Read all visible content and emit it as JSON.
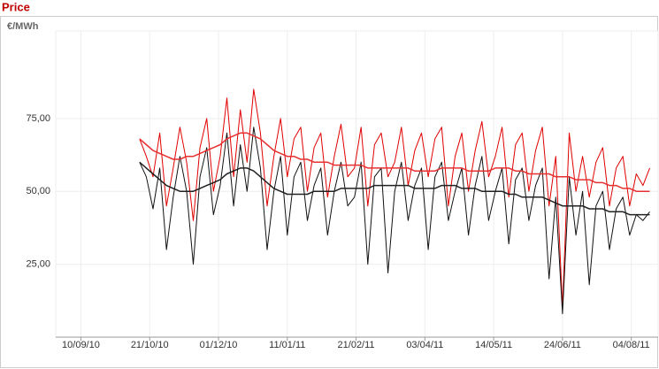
{
  "chart_data": {
    "type": "line",
    "title": "Price",
    "y_label": "€/MWh",
    "x": [
      "2010-10-15",
      "2010-10-19",
      "2010-10-23",
      "2010-10-27",
      "2010-10-31",
      "2010-11-04",
      "2010-11-08",
      "2010-11-12",
      "2010-11-16",
      "2010-11-20",
      "2010-11-24",
      "2010-11-28",
      "2010-12-02",
      "2010-12-06",
      "2010-12-10",
      "2010-12-14",
      "2010-12-18",
      "2010-12-22",
      "2010-12-26",
      "2010-12-30",
      "2011-01-03",
      "2011-01-07",
      "2011-01-11",
      "2011-01-15",
      "2011-01-19",
      "2011-01-23",
      "2011-01-27",
      "2011-01-31",
      "2011-02-04",
      "2011-02-08",
      "2011-02-12",
      "2011-02-16",
      "2011-02-20",
      "2011-02-24",
      "2011-02-28",
      "2011-03-04",
      "2011-03-08",
      "2011-03-12",
      "2011-03-16",
      "2011-03-20",
      "2011-03-24",
      "2011-03-28",
      "2011-04-01",
      "2011-04-05",
      "2011-04-09",
      "2011-04-13",
      "2011-04-17",
      "2011-04-21",
      "2011-04-25",
      "2011-04-29",
      "2011-05-03",
      "2011-05-07",
      "2011-05-11",
      "2011-05-15",
      "2011-05-19",
      "2011-05-23",
      "2011-05-27",
      "2011-05-31",
      "2011-06-04",
      "2011-06-08",
      "2011-06-12",
      "2011-06-16",
      "2011-06-20",
      "2011-06-24",
      "2011-06-28",
      "2011-07-02",
      "2011-07-06",
      "2011-07-10",
      "2011-07-14",
      "2011-07-18",
      "2011-07-22",
      "2011-07-26",
      "2011-07-30",
      "2011-08-03",
      "2011-08-07",
      "2011-08-11",
      "2011-08-15"
    ],
    "series": [
      {
        "color": "#e00000",
        "width": 1,
        "values": [
          68,
          62,
          55,
          70,
          45,
          58,
          72,
          60,
          40,
          65,
          75,
          50,
          62,
          82,
          55,
          78,
          60,
          85,
          70,
          45,
          62,
          75,
          55,
          68,
          72,
          50,
          65,
          70,
          48,
          62,
          73,
          55,
          58,
          72,
          45,
          66,
          70,
          55,
          60,
          72,
          52,
          64,
          70,
          55,
          68,
          72,
          45,
          62,
          70,
          50,
          64,
          74,
          55,
          62,
          72,
          48,
          66,
          70,
          50,
          64,
          72,
          45,
          62,
          10,
          70,
          50,
          62,
          48,
          60,
          65,
          45,
          58,
          62,
          45,
          56,
          52,
          58
        ]
      },
      {
        "color": "#111111",
        "width": 1,
        "values": [
          60,
          55,
          44,
          58,
          30,
          48,
          62,
          50,
          25,
          55,
          65,
          42,
          52,
          70,
          45,
          66,
          50,
          72,
          58,
          30,
          50,
          62,
          35,
          55,
          60,
          40,
          52,
          58,
          35,
          50,
          60,
          45,
          48,
          60,
          25,
          55,
          58,
          22,
          50,
          60,
          40,
          52,
          58,
          30,
          55,
          60,
          40,
          50,
          58,
          35,
          52,
          62,
          40,
          50,
          58,
          32,
          54,
          58,
          40,
          52,
          58,
          20,
          48,
          8,
          55,
          35,
          50,
          18,
          45,
          50,
          30,
          44,
          48,
          35,
          42,
          40,
          43
        ]
      },
      {
        "color": "#e83030",
        "width": 1.5,
        "values": [
          68,
          66,
          64,
          63,
          62,
          61,
          61,
          62,
          62,
          63,
          64,
          65,
          66,
          68,
          69,
          70,
          70,
          69,
          68,
          66,
          64,
          63,
          62,
          62,
          61,
          61,
          60,
          60,
          60,
          59,
          59,
          59,
          59,
          59,
          58,
          58,
          58,
          58,
          58,
          58,
          58,
          57,
          57,
          57,
          57,
          58,
          58,
          58,
          58,
          57,
          57,
          57,
          57,
          58,
          58,
          58,
          57,
          57,
          56,
          56,
          56,
          56,
          55,
          55,
          55,
          54,
          54,
          54,
          53,
          53,
          52,
          52,
          51,
          51,
          50,
          50,
          50
        ]
      },
      {
        "color": "#222222",
        "width": 1.5,
        "values": [
          60,
          58,
          56,
          54,
          52,
          51,
          50,
          50,
          50,
          51,
          52,
          53,
          54,
          56,
          57,
          58,
          58,
          57,
          55,
          53,
          51,
          50,
          49,
          49,
          49,
          49,
          50,
          50,
          50,
          50,
          51,
          51,
          51,
          51,
          51,
          52,
          52,
          52,
          52,
          52,
          52,
          51,
          51,
          51,
          51,
          52,
          52,
          52,
          51,
          51,
          51,
          50,
          50,
          50,
          50,
          49,
          49,
          48,
          48,
          48,
          48,
          47,
          46,
          45,
          45,
          45,
          45,
          44,
          44,
          44,
          43,
          43,
          43,
          42,
          42,
          42,
          42
        ]
      }
    ],
    "xlim": [
      "2010-08-26",
      "2011-08-20"
    ],
    "xticks": [
      {
        "value": "2010-09-10",
        "label": "10/09/10"
      },
      {
        "value": "2010-10-21",
        "label": "21/10/10"
      },
      {
        "value": "2010-12-01",
        "label": "01/12/10"
      },
      {
        "value": "2011-01-11",
        "label": "11/01/11"
      },
      {
        "value": "2011-02-21",
        "label": "21/02/11"
      },
      {
        "value": "2011-04-03",
        "label": "03/04/11"
      },
      {
        "value": "2011-05-14",
        "label": "14/05/11"
      },
      {
        "value": "2011-06-24",
        "label": "24/06/11"
      },
      {
        "value": "2011-08-04",
        "label": "04/08/11"
      }
    ],
    "ylim": [
      0,
      105
    ],
    "yticks": [
      {
        "value": 25,
        "label": "25,00"
      },
      {
        "value": 50,
        "label": "50,00"
      },
      {
        "value": 75,
        "label": "75,00"
      }
    ],
    "grid": true
  }
}
